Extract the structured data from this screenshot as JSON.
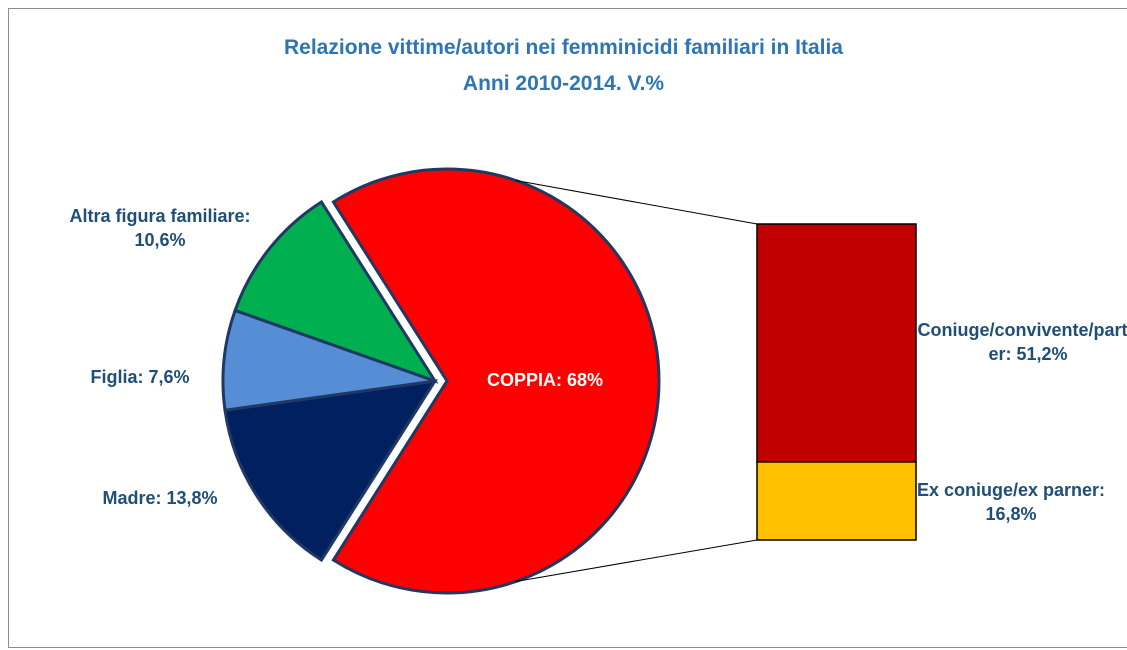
{
  "chart_data": {
    "type": "pie",
    "title": "Relazione vittime/autori nei femminicidi familiari in Italia",
    "subtitle": "Anni 2010-2014. V.%",
    "pie": {
      "values": [
        68,
        13.8,
        7.6,
        10.6
      ],
      "value_labels": [
        "COPPIA: 68%",
        "Madre: 13,8%",
        "Figlia: 7,6%",
        "Altra figura familiare: 10,6%"
      ],
      "colors": [
        "#ff0000",
        "#002060",
        "#558ed5",
        "#00b050"
      ]
    },
    "bar": {
      "values": [
        51.2,
        16.8
      ],
      "value_labels": [
        "Coniuge/convivente/partner: 51,2%",
        "Ex coniuge/ex parner: 16,8%"
      ],
      "colors": [
        "#c00000",
        "#ffc000"
      ]
    }
  }
}
